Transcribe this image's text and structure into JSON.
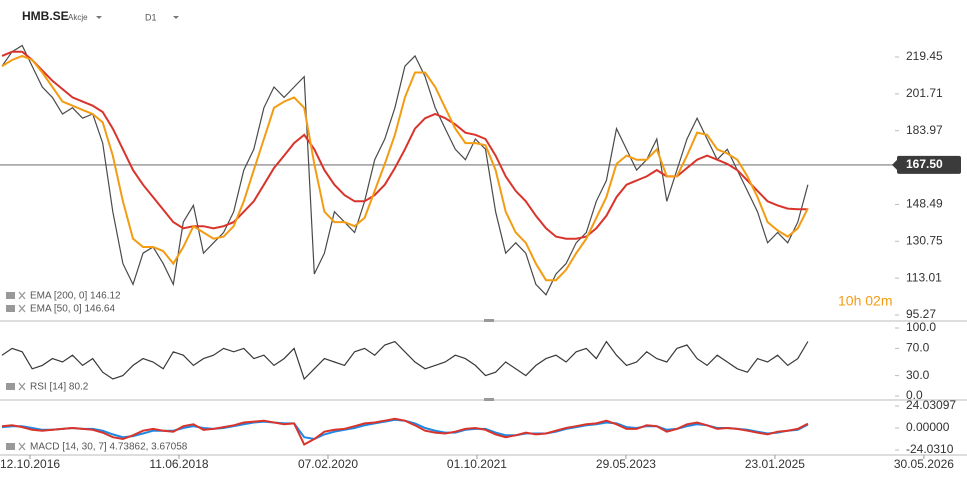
{
  "header": {
    "symbol": "HMB.SE",
    "kind": "Akcje",
    "interval": "D1"
  },
  "countdown": "10h 02m",
  "x_axis": {
    "x": [
      0,
      1,
      2,
      3,
      4,
      5,
      6,
      7,
      8,
      9,
      10,
      11,
      12,
      13,
      14,
      15,
      16,
      17,
      18,
      19,
      20,
      21,
      22,
      23,
      24,
      25,
      26,
      27,
      28,
      29,
      30,
      31,
      32,
      33,
      34,
      35,
      36,
      37,
      38,
      39,
      40,
      41,
      42,
      43,
      44,
      45,
      46,
      47,
      48,
      49,
      50,
      51,
      52,
      53,
      54,
      55,
      56,
      57,
      58,
      59,
      60,
      61,
      62,
      63,
      64,
      65,
      66,
      67,
      68,
      69,
      70,
      71,
      72,
      73,
      74,
      75,
      76,
      77,
      78,
      79,
      80
    ],
    "xlim": [
      -0.2,
      95.6
    ],
    "xticks": [
      {
        "value": 2.78,
        "label": "12.10.2016"
      },
      {
        "value": 17.57,
        "label": "11.06.2018"
      },
      {
        "value": 32.36,
        "label": "07.02.2020"
      },
      {
        "value": 47.15,
        "label": "01.10.2021"
      },
      {
        "value": 61.94,
        "label": "29.05.2023"
      },
      {
        "value": 76.73,
        "label": "23.01.2025"
      },
      {
        "value": 91.52,
        "label": "30.05.2026"
      }
    ]
  },
  "chart_data": [
    {
      "type": "line",
      "ylim": [
        92.86,
        237.26
      ],
      "yticks": [
        219.45,
        201.71,
        183.97,
        148.49,
        130.75,
        113.01,
        95.27
      ],
      "last_price": {
        "value": 167.5,
        "label": "167.50"
      },
      "color": "#4a4a4a",
      "values": [
        215,
        222,
        225,
        215,
        205,
        200,
        192,
        195,
        190,
        192,
        178,
        145,
        120,
        110,
        125,
        128,
        120,
        110,
        140,
        148,
        125,
        130,
        135,
        145,
        165,
        175,
        195,
        205,
        200,
        205,
        210,
        115,
        125,
        145,
        140,
        135,
        150,
        170,
        180,
        195,
        215,
        220,
        210,
        195,
        185,
        175,
        170,
        180,
        175,
        145,
        125,
        130,
        125,
        110,
        105,
        115,
        120,
        130,
        135,
        150,
        160,
        185,
        175,
        165,
        170,
        180,
        150,
        165,
        180,
        190,
        180,
        170,
        175,
        165,
        155,
        145,
        130,
        135,
        130,
        140,
        158
      ],
      "series": [
        {
          "name": "EMA [200, 0] 146.12",
          "color": "#d9342b",
          "values": [
            220,
            222,
            222,
            218,
            213,
            208,
            204,
            200,
            198,
            196,
            193,
            185,
            175,
            165,
            158,
            152,
            146,
            140,
            137,
            138,
            138,
            137,
            138,
            140,
            145,
            150,
            158,
            166,
            172,
            178,
            182,
            175,
            165,
            158,
            153,
            150,
            150,
            153,
            158,
            166,
            175,
            185,
            190,
            192,
            190,
            187,
            183,
            182,
            180,
            172,
            162,
            155,
            150,
            143,
            137,
            133,
            132,
            132,
            133,
            137,
            143,
            152,
            158,
            160,
            162,
            165,
            162,
            162,
            166,
            170,
            172,
            170,
            168,
            165,
            160,
            155,
            150,
            148,
            146.5,
            146.2,
            146.12
          ]
        },
        {
          "name": "EMA [50, 0] 146.64",
          "color": "#f39c12",
          "values": [
            215,
            218,
            220,
            218,
            212,
            205,
            198,
            196,
            194,
            192,
            188,
            172,
            150,
            132,
            128,
            128,
            126,
            120,
            128,
            138,
            135,
            132,
            133,
            138,
            150,
            165,
            180,
            195,
            198,
            200,
            195,
            168,
            145,
            140,
            140,
            138,
            142,
            155,
            168,
            182,
            200,
            212,
            212,
            205,
            195,
            185,
            178,
            178,
            177,
            165,
            145,
            135,
            130,
            120,
            112,
            112,
            117,
            125,
            132,
            142,
            152,
            168,
            172,
            170,
            170,
            175,
            162,
            162,
            172,
            183,
            182,
            175,
            173,
            170,
            162,
            152,
            140,
            136,
            133,
            137,
            146.64
          ]
        }
      ]
    },
    {
      "type": "line",
      "label": "RSI [14] 80.2",
      "ylim": [
        0,
        100
      ],
      "yticks": [
        {
          "value": 100,
          "label": "100.0"
        },
        {
          "value": 70,
          "label": "70.0"
        },
        {
          "value": 30,
          "label": "30.0"
        },
        {
          "value": 0,
          "label": "0.0"
        }
      ],
      "color": "#3a3a3a",
      "values": [
        60,
        70,
        65,
        40,
        45,
        55,
        50,
        60,
        45,
        55,
        35,
        25,
        30,
        45,
        55,
        50,
        40,
        65,
        60,
        45,
        55,
        60,
        70,
        65,
        70,
        55,
        60,
        45,
        55,
        70,
        25,
        40,
        55,
        50,
        45,
        65,
        70,
        60,
        75,
        80,
        65,
        50,
        40,
        45,
        50,
        60,
        55,
        45,
        30,
        35,
        50,
        40,
        30,
        45,
        55,
        60,
        50,
        65,
        70,
        55,
        80,
        60,
        45,
        50,
        65,
        55,
        50,
        70,
        75,
        55,
        45,
        60,
        50,
        40,
        35,
        55,
        50,
        60,
        45,
        55,
        80.2
      ]
    },
    {
      "type": "line",
      "label": "MACD [14, 30, 7] 4.73862, 3.67058",
      "ylim": [
        -24.031,
        24.031
      ],
      "yticks": [
        24.03097,
        {
          "value": 0,
          "label": "0.00000"
        },
        {
          "value": -24.031,
          "label": "-24.0310"
        }
      ],
      "series": [
        {
          "color": "#1e88e5",
          "values": [
            1,
            2,
            2,
            0,
            -2,
            -2,
            -1,
            0,
            -1,
            -1,
            -3,
            -7,
            -10,
            -9,
            -6,
            -3,
            -3,
            -3,
            0,
            2,
            0,
            -1,
            0,
            2,
            4,
            6,
            7,
            6,
            5,
            5,
            -10,
            -12,
            -7,
            -4,
            -2,
            0,
            3,
            5,
            7,
            9,
            8,
            5,
            0,
            -3,
            -5,
            -5,
            -2,
            -1,
            -1,
            -5,
            -8,
            -8,
            -6,
            -6,
            -6,
            -4,
            -1,
            1,
            3,
            4,
            6,
            5,
            1,
            0,
            2,
            2,
            -2,
            -1,
            2,
            4,
            3,
            0,
            0,
            -1,
            -2,
            -4,
            -6,
            -5,
            -3,
            -2,
            3.67058
          ]
        },
        {
          "color": "#d9342b",
          "values": [
            2,
            3,
            1,
            -2,
            -3,
            -2,
            -1,
            0,
            -1,
            -2,
            -5,
            -10,
            -12,
            -8,
            -3,
            -1,
            -3,
            -4,
            2,
            4,
            -2,
            -1,
            1,
            3,
            6,
            7,
            8,
            6,
            4,
            5,
            -18,
            -12,
            -4,
            -2,
            -1,
            2,
            5,
            6,
            8,
            10,
            8,
            3,
            -3,
            -5,
            -6,
            -4,
            -1,
            0,
            -2,
            -7,
            -10,
            -8,
            -5,
            -7,
            -6,
            -3,
            0,
            2,
            4,
            5,
            8,
            4,
            -1,
            -1,
            3,
            2,
            -4,
            -1,
            4,
            6,
            3,
            -1,
            0,
            -1,
            -3,
            -5,
            -7,
            -4,
            -3,
            -1,
            4.73862
          ]
        }
      ]
    }
  ]
}
